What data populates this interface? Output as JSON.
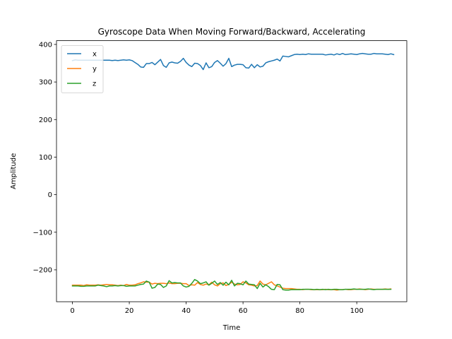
{
  "chart_data": {
    "type": "line",
    "title": "Gyroscope Data When Moving Forward/Backward, Accelerating",
    "xlabel": "Time",
    "ylabel": "Amplitude",
    "xlim": [
      -5.6,
      117.6
    ],
    "ylim": [
      -285,
      410
    ],
    "xticks": [
      0,
      20,
      40,
      60,
      80,
      100
    ],
    "yticks": [
      -200,
      -100,
      0,
      100,
      200,
      300,
      400
    ],
    "ytick_labels": [
      "−200",
      "−100",
      "0",
      "100",
      "200",
      "300",
      "400"
    ],
    "grid": false,
    "legend_position": "top-left",
    "series": [
      {
        "name": "x",
        "color": "#1f77b4",
        "values": [
          357,
          359,
          358,
          358,
          358,
          358,
          358,
          358,
          358,
          358,
          358,
          358,
          358,
          358,
          357,
          358,
          357,
          358,
          359,
          358,
          359,
          357,
          352,
          347,
          340,
          339,
          349,
          349,
          352,
          346,
          353,
          360,
          344,
          339,
          351,
          353,
          351,
          350,
          355,
          363,
          352,
          345,
          341,
          350,
          349,
          344,
          333,
          351,
          338,
          341,
          352,
          357,
          350,
          342,
          349,
          363,
          341,
          345,
          347,
          347,
          346,
          338,
          337,
          347,
          338,
          346,
          340,
          342,
          351,
          354,
          356,
          358,
          361,
          356,
          369,
          368,
          367,
          370,
          373,
          374,
          373,
          374,
          373,
          375,
          374,
          374,
          374,
          374,
          374,
          372,
          373,
          374,
          372,
          375,
          373,
          376,
          373,
          374,
          375,
          374,
          373,
          375,
          376,
          375,
          374,
          374,
          376,
          375,
          375,
          375,
          374,
          373,
          375,
          373
        ]
      },
      {
        "name": "y",
        "color": "#ff7f0e",
        "values": [
          -241,
          -241,
          -241,
          -241,
          -242,
          -240,
          -241,
          -241,
          -241,
          -240,
          -241,
          -240,
          -239,
          -240,
          -240,
          -241,
          -242,
          -241,
          -242,
          -239,
          -241,
          -241,
          -240,
          -237,
          -235,
          -232,
          -233,
          -233,
          -238,
          -236,
          -237,
          -236,
          -236,
          -237,
          -235,
          -237,
          -237,
          -236,
          -236,
          -237,
          -237,
          -242,
          -240,
          -241,
          -234,
          -239,
          -241,
          -238,
          -240,
          -233,
          -240,
          -243,
          -237,
          -235,
          -242,
          -239,
          -233,
          -238,
          -240,
          -239,
          -232,
          -235,
          -240,
          -241,
          -243,
          -242,
          -230,
          -238,
          -240,
          -236,
          -232,
          -240,
          -243,
          -246,
          -249,
          -250,
          -250,
          -250,
          -251,
          -252,
          -252,
          -253,
          -252,
          -252,
          -253,
          -253,
          -253,
          -253,
          -253,
          -252,
          -253,
          -253,
          -253,
          -254,
          -253,
          -253,
          -252,
          -253,
          -253,
          -252,
          -252,
          -251,
          -252,
          -253,
          -252,
          -251,
          -252,
          -252,
          -252,
          -252,
          -251,
          -252,
          -251
        ]
      },
      {
        "name": "z",
        "color": "#2ca02c",
        "values": [
          -243,
          -243,
          -243,
          -244,
          -244,
          -243,
          -243,
          -243,
          -243,
          -241,
          -242,
          -243,
          -245,
          -243,
          -243,
          -242,
          -243,
          -242,
          -242,
          -244,
          -243,
          -243,
          -243,
          -241,
          -239,
          -238,
          -230,
          -233,
          -249,
          -247,
          -238,
          -239,
          -247,
          -243,
          -229,
          -235,
          -234,
          -235,
          -235,
          -243,
          -246,
          -244,
          -236,
          -226,
          -230,
          -237,
          -235,
          -232,
          -241,
          -236,
          -230,
          -239,
          -234,
          -241,
          -233,
          -240,
          -228,
          -243,
          -236,
          -237,
          -240,
          -230,
          -238,
          -239,
          -240,
          -250,
          -236,
          -246,
          -240,
          -245,
          -252,
          -253,
          -239,
          -240,
          -253,
          -254,
          -254,
          -253,
          -253,
          -253,
          -253,
          -252,
          -252,
          -252,
          -252,
          -253,
          -252,
          -253,
          -252,
          -253,
          -252,
          -253,
          -252,
          -252,
          -253,
          -253,
          -252,
          -252,
          -252,
          -251,
          -252,
          -252,
          -252,
          -252,
          -251,
          -252,
          -253,
          -252,
          -252,
          -252,
          -252,
          -252,
          -252
        ]
      }
    ]
  }
}
